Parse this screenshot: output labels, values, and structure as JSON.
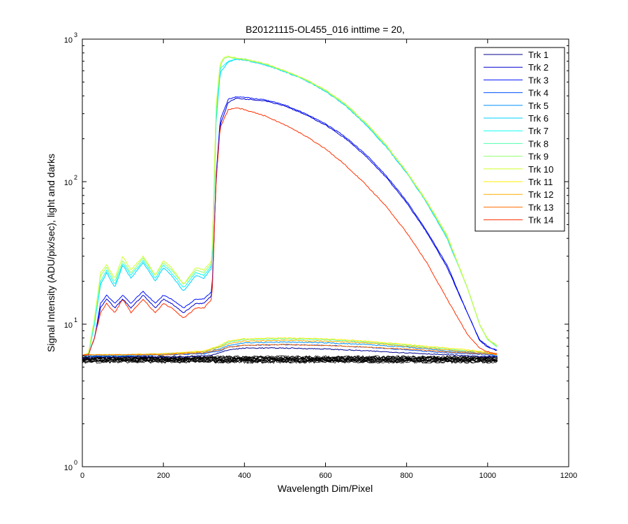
{
  "chart_data": {
    "type": "line",
    "title": "B20121115-OL455_016 inttime = 20,",
    "xlabel": "Wavelength Dim/Pixel",
    "ylabel": "Signal Intensity (ADU/pix/sec), light and darks",
    "xlim": [
      0,
      1200
    ],
    "ylim": [
      1,
      1000
    ],
    "yscale": "log",
    "grid": false,
    "legend_position": "top-right",
    "x_ticks": [
      0,
      200,
      400,
      600,
      800,
      1000,
      1200
    ],
    "x_tick_labels": [
      "0",
      "200",
      "400",
      "600",
      "800",
      "1000",
      "1200"
    ],
    "y_ticks": [
      1,
      10,
      100,
      1000
    ],
    "y_tick_labels": [
      {
        "base": "10",
        "exp": "0"
      },
      {
        "base": "10",
        "exp": "1"
      },
      {
        "base": "10",
        "exp": "2"
      },
      {
        "base": "10",
        "exp": "3"
      }
    ],
    "series": [
      {
        "name": "Trk 1",
        "color": "#00008f",
        "x": [
          0,
          15,
          30,
          45,
          60,
          100,
          150,
          200,
          250,
          300,
          320,
          330,
          340,
          360,
          400,
          500,
          600,
          700,
          800,
          900,
          950,
          1000,
          1025
        ],
        "y": [
          5.8,
          5.8,
          5.9,
          5.9,
          5.9,
          5.9,
          5.9,
          5.9,
          5.9,
          6.0,
          6.1,
          6.2,
          6.3,
          6.6,
          6.8,
          6.8,
          6.7,
          6.5,
          6.3,
          6.1,
          6.0,
          5.9,
          5.9
        ]
      },
      {
        "name": "Trk 2",
        "color": "#0000cf",
        "x": [
          0,
          15,
          30,
          45,
          60,
          80,
          100,
          120,
          150,
          180,
          200,
          220,
          250,
          280,
          300,
          320,
          330,
          340,
          360,
          380,
          400,
          450,
          500,
          550,
          600,
          650,
          700,
          750,
          800,
          850,
          900,
          950,
          980,
          1000,
          1025
        ],
        "y": [
          6.0,
          6.1,
          8,
          13,
          15,
          13,
          15,
          13,
          16,
          13,
          15,
          14,
          12,
          14,
          14,
          16,
          100,
          250,
          360,
          385,
          380,
          370,
          340,
          295,
          250,
          200,
          150,
          107,
          71,
          44,
          25,
          12,
          7.7,
          6.9,
          6.5
        ]
      },
      {
        "name": "Trk 3",
        "color": "#0010ff",
        "x": [
          0,
          15,
          30,
          45,
          60,
          80,
          100,
          120,
          150,
          180,
          200,
          220,
          250,
          280,
          300,
          320,
          330,
          340,
          360,
          380,
          400,
          450,
          500,
          550,
          600,
          650,
          700,
          750,
          800,
          850,
          900,
          950,
          980,
          1000,
          1025
        ],
        "y": [
          6.0,
          6.1,
          8,
          14,
          16,
          14,
          16,
          14,
          17,
          14,
          16,
          15,
          13,
          15,
          15,
          17,
          110,
          270,
          380,
          395,
          390,
          375,
          345,
          300,
          255,
          205,
          155,
          110,
          73,
          45,
          26,
          12,
          7.8,
          7.0,
          6.5
        ]
      },
      {
        "name": "Trk 4",
        "color": "#0050ff",
        "x": [
          0,
          100,
          200,
          300,
          340,
          360,
          400,
          500,
          600,
          700,
          800,
          900,
          1000,
          1025
        ],
        "y": [
          6.0,
          6.0,
          6.1,
          6.2,
          6.5,
          6.9,
          7.1,
          7.2,
          7.1,
          6.9,
          6.6,
          6.3,
          6.1,
          6.0
        ]
      },
      {
        "name": "Trk 5",
        "color": "#0090ff",
        "x": [
          0,
          100,
          200,
          300,
          340,
          360,
          400,
          500,
          600,
          700,
          800,
          900,
          1000,
          1025
        ],
        "y": [
          6.0,
          6.0,
          6.1,
          6.3,
          6.7,
          7.1,
          7.4,
          7.5,
          7.4,
          7.2,
          6.9,
          6.5,
          6.2,
          6.0
        ]
      },
      {
        "name": "Trk 6",
        "color": "#00d0ff",
        "x": [
          0,
          15,
          30,
          45,
          60,
          80,
          100,
          120,
          150,
          180,
          200,
          220,
          250,
          280,
          300,
          320,
          330,
          340,
          360,
          380,
          400,
          450,
          500,
          550,
          600,
          650,
          700,
          750,
          800,
          850,
          900,
          950,
          980,
          1000,
          1025
        ],
        "y": [
          6.0,
          6.2,
          10,
          19,
          23,
          18,
          26,
          21,
          27,
          20,
          25,
          22,
          17,
          22,
          21,
          25,
          260,
          580,
          690,
          720,
          715,
          660,
          590,
          515,
          430,
          340,
          250,
          175,
          115,
          71,
          40,
          18,
          10,
          7.8,
          6.9
        ]
      },
      {
        "name": "Trk 7",
        "color": "#10ffef",
        "x": [
          0,
          15,
          30,
          45,
          60,
          80,
          100,
          120,
          150,
          180,
          200,
          220,
          250,
          280,
          300,
          320,
          330,
          340,
          360,
          380,
          400,
          450,
          500,
          550,
          600,
          650,
          700,
          750,
          800,
          850,
          900,
          950,
          980,
          1000,
          1025
        ],
        "y": [
          6.0,
          6.2,
          10,
          20,
          24,
          19,
          27,
          22,
          28,
          21,
          26,
          23,
          18,
          23,
          22,
          26,
          280,
          620,
          700,
          730,
          725,
          670,
          595,
          520,
          435,
          345,
          255,
          178,
          117,
          72,
          41,
          18,
          10,
          7.8,
          6.9
        ]
      },
      {
        "name": "Trk 8",
        "color": "#50ffaf",
        "x": [
          0,
          100,
          200,
          300,
          340,
          360,
          400,
          500,
          600,
          700,
          800,
          900,
          1000,
          1025
        ],
        "y": [
          6.1,
          6.1,
          6.2,
          6.4,
          7.0,
          7.5,
          7.8,
          7.9,
          7.8,
          7.5,
          7.1,
          6.7,
          6.3,
          6.1
        ]
      },
      {
        "name": "Trk 9",
        "color": "#90ff6f",
        "x": [
          0,
          15,
          30,
          45,
          60,
          80,
          100,
          120,
          150,
          180,
          200,
          220,
          250,
          280,
          300,
          320,
          330,
          340,
          350,
          360,
          380,
          400,
          450,
          500,
          550,
          600,
          650,
          700,
          750,
          800,
          850,
          900,
          950,
          980,
          1000,
          1025
        ],
        "y": [
          6.0,
          6.3,
          11,
          22,
          25,
          20,
          28,
          23,
          29,
          22,
          27,
          24,
          19,
          24,
          23,
          27,
          320,
          650,
          730,
          745,
          730,
          720,
          670,
          595,
          520,
          435,
          345,
          255,
          178,
          117,
          72,
          41,
          18,
          10,
          7.8,
          6.9
        ]
      },
      {
        "name": "Trk 10",
        "color": "#d0ff2f",
        "x": [
          0,
          15,
          30,
          45,
          60,
          80,
          100,
          120,
          150,
          180,
          200,
          220,
          250,
          280,
          300,
          320,
          330,
          340,
          350,
          360,
          380,
          400,
          450,
          500,
          550,
          600,
          650,
          700,
          750,
          800,
          850,
          900,
          950,
          980,
          1000,
          1025
        ],
        "y": [
          6.0,
          6.3,
          11,
          23,
          26,
          21,
          30,
          24,
          30,
          22,
          28,
          25,
          19,
          25,
          24,
          28,
          340,
          680,
          745,
          755,
          740,
          725,
          675,
          600,
          525,
          440,
          350,
          258,
          180,
          118,
          73,
          42,
          18,
          10,
          7.9,
          7.0
        ]
      },
      {
        "name": "Trk 11",
        "color": "#ffef00",
        "x": [
          0,
          100,
          200,
          300,
          340,
          360,
          400,
          500,
          600,
          700,
          800,
          900,
          1000,
          1025
        ],
        "y": [
          6.1,
          6.1,
          6.2,
          6.5,
          7.1,
          7.6,
          7.9,
          8.0,
          7.9,
          7.6,
          7.2,
          6.8,
          6.4,
          6.1
        ]
      },
      {
        "name": "Trk 12",
        "color": "#ffaf00",
        "x": [
          0,
          100,
          200,
          300,
          340,
          360,
          400,
          500,
          600,
          700,
          800,
          900,
          1000,
          1025
        ],
        "y": [
          6.1,
          6.1,
          6.2,
          6.4,
          6.9,
          7.3,
          7.6,
          7.7,
          7.6,
          7.4,
          7.0,
          6.6,
          6.3,
          6.1
        ]
      },
      {
        "name": "Trk 13",
        "color": "#ff6f00",
        "x": [
          0,
          100,
          200,
          300,
          340,
          360,
          400,
          500,
          600,
          700,
          800,
          900,
          1000,
          1025
        ],
        "y": [
          6.1,
          6.1,
          6.1,
          6.3,
          6.6,
          6.9,
          7.1,
          7.2,
          7.1,
          6.9,
          6.7,
          6.4,
          6.2,
          6.1
        ]
      },
      {
        "name": "Trk 14",
        "color": "#ff2f00",
        "x": [
          0,
          15,
          30,
          45,
          60,
          80,
          100,
          120,
          150,
          180,
          200,
          220,
          250,
          280,
          300,
          320,
          330,
          340,
          360,
          380,
          400,
          450,
          500,
          550,
          600,
          650,
          700,
          750,
          800,
          850,
          900,
          950,
          980,
          1000,
          1025
        ],
        "y": [
          6.0,
          6.1,
          8,
          12,
          14,
          12,
          15,
          12,
          15,
          12,
          14,
          13,
          11,
          13,
          13,
          15,
          100,
          240,
          320,
          330,
          320,
          290,
          250,
          210,
          170,
          130,
          95,
          67,
          44,
          27,
          15,
          8.5,
          6.8,
          6.4,
          6.2
        ]
      }
    ]
  }
}
